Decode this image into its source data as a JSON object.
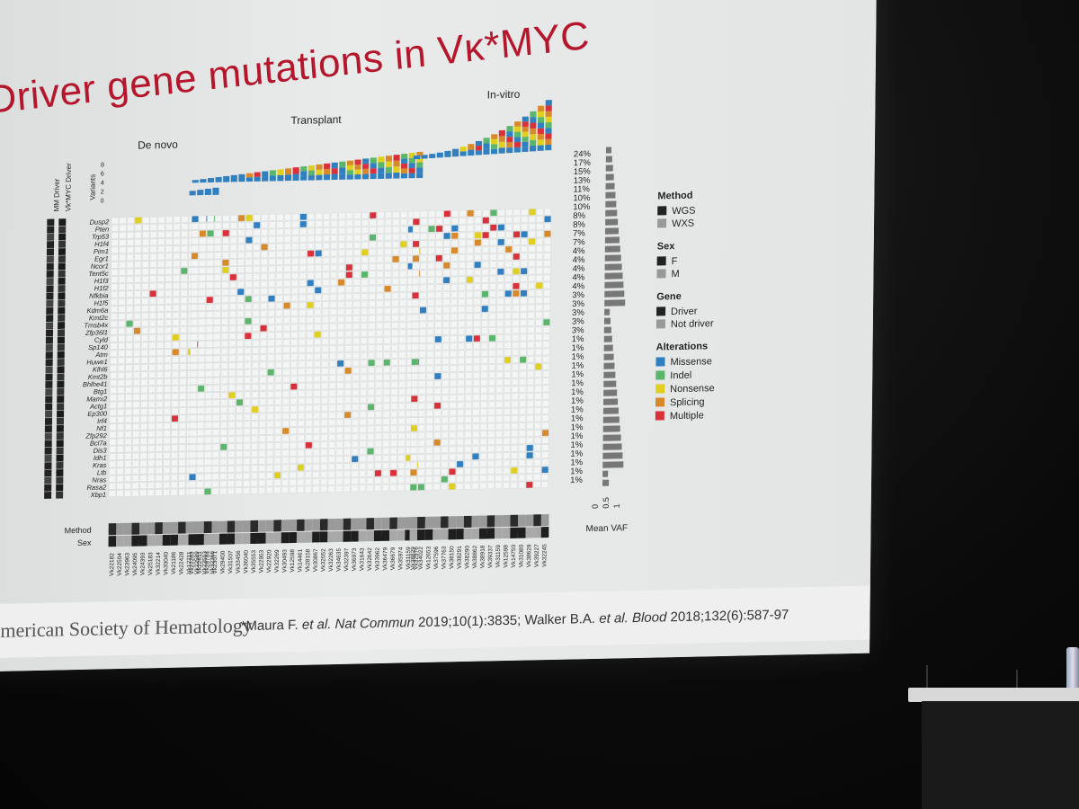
{
  "slide": {
    "title": "Driver gene mutations in Vκ*MYC",
    "groups": {
      "de_novo": "De novo",
      "transplant": "Transplant",
      "in_vitro": "In-vitro"
    },
    "left_column_labels": [
      "MM Driver",
      "Vk*MYC Driver"
    ],
    "variants_axis": {
      "label": "Variants",
      "ticks": [
        "8",
        "6",
        "4",
        "2",
        "0"
      ]
    },
    "genes": [
      "Dusp2",
      "Pten",
      "Trp53",
      "H1f4",
      "Pim1",
      "Egr1",
      "Ncor1",
      "Tent5c",
      "H1f3",
      "H1f2",
      "Nfkbia",
      "H1f5",
      "Kdm6a",
      "Kmt2c",
      "Tmsb4x",
      "Zfp36l1",
      "Cyld",
      "Sp140",
      "Atm",
      "Huwe1",
      "Klhl6",
      "Kmt2b",
      "Bhlhe41",
      "Btg1",
      "Mamı2",
      "Actg1",
      "Ep300",
      "Irf4",
      "Nf1",
      "Zfp292",
      "Bcl7a",
      "Dis3",
      "Idh1",
      "Kras",
      "Ltb",
      "Nras",
      "Rasa2",
      "Xbp1"
    ],
    "percentages": [
      "24%",
      "17%",
      "15%",
      "13%",
      "11%",
      "10%",
      "10%",
      "8%",
      "8%",
      "7%",
      "7%",
      "4%",
      "4%",
      "4%",
      "4%",
      "4%",
      "3%",
      "3%",
      "3%",
      "3%",
      "3%",
      "1%",
      "1%",
      "1%",
      "1%",
      "1%",
      "1%",
      "1%",
      "1%",
      "1%",
      "1%",
      "1%",
      "1%",
      "1%",
      "1%",
      "1%",
      "1%",
      "1%"
    ],
    "row_labels": {
      "method": "Method",
      "sex": "Sex"
    },
    "vaf_axis": {
      "label": "Mean VAF",
      "ticks": [
        "0",
        "0.5",
        "1"
      ]
    },
    "samples_de_novo": [
      "Vk22182",
      "Vk22504",
      "Vk23963",
      "Vk24095",
      "Vk24393",
      "Vk25183",
      "Vk32214",
      "Vk30040",
      "Vk21186",
      "Vk22428",
      "Vk12211",
      "Vk22589",
      "Vk23553",
      "Vk32366"
    ],
    "samples_transplant": [
      "Vk22283",
      "Vk22611",
      "Vk28784",
      "Vk23071",
      "Vk29400",
      "Vk31507",
      "Vk33456",
      "Vk36040",
      "Vk35553",
      "Vk22953",
      "Vk22920",
      "Vk32269",
      "Vk30493",
      "Vk12598",
      "Vk14461",
      "Vk28158",
      "Vk30867",
      "Vk32052",
      "Vk32263",
      "Vk34635",
      "Vk32397",
      "Vk36973",
      "Vk31643",
      "Vk32642",
      "Vk33962",
      "Vk36479",
      "Vk36679",
      "Vk35974",
      "Vk31159",
      "Vk32976"
    ],
    "samples_in_vitro": [
      "Vk38829",
      "Vk34022",
      "Vk12653",
      "Vk37596",
      "Vk37763",
      "Vk38150",
      "Vk38291",
      "Vk38290",
      "Vk38862",
      "Vk38918",
      "Vk39337",
      "Vk31159",
      "Vk12598",
      "Vk14750",
      "Vk31080",
      "Vk38629",
      "Vk39227",
      "Vk32245"
    ],
    "legend": {
      "method": {
        "title": "Method",
        "items": [
          "WGS",
          "WXS"
        ]
      },
      "sex": {
        "title": "Sex",
        "items": [
          "F",
          "M"
        ]
      },
      "gene": {
        "title": "Gene",
        "items": [
          "Driver",
          "Not driver"
        ]
      },
      "alterations": {
        "title": "Alterations",
        "items": [
          "Missense",
          "Indel",
          "Nonsense",
          "Splicing",
          "Multiple"
        ]
      }
    },
    "colors": {
      "missense": "#2f7fc1",
      "indel": "#5bb56a",
      "nonsense": "#e0cf1f",
      "splicing": "#d88a2a",
      "multiple": "#d9303a",
      "title": "#b5162b"
    },
    "footer": {
      "org": "American Society of Hematology",
      "cite_prefix": "*Maura F. ",
      "cite_etal1": "et al. Nat Commun",
      "cite_mid": " 2019;10(1):3835; Walker B.A. ",
      "cite_etal2": "et al. Blood",
      "cite_end": " 2018;132(6):587-97"
    }
  }
}
